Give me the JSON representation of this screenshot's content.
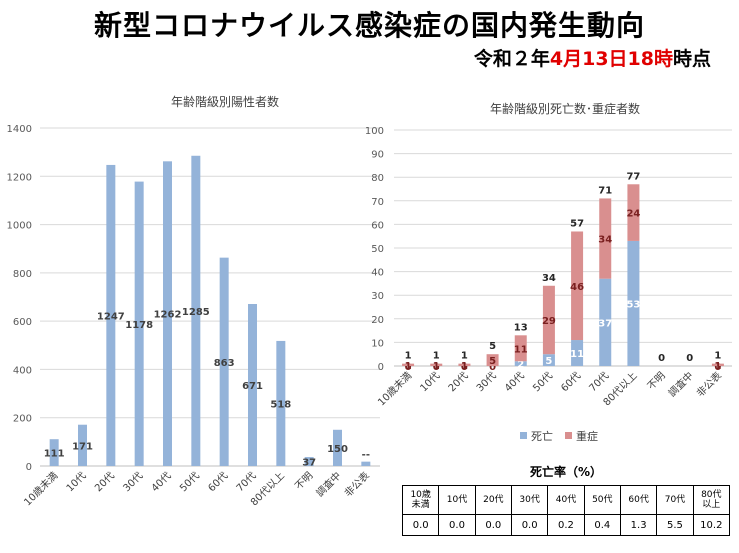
{
  "header": {
    "title": "新型コロナウイルス感染症の国内発生動向",
    "date_prefix": "令和２年",
    "date_red": "4月13日18時",
    "date_suffix": "時点"
  },
  "chart_data": [
    {
      "type": "bar",
      "title": "年齢階級別陽性者数",
      "categories": [
        "10歳未満",
        "10代",
        "20代",
        "30代",
        "40代",
        "50代",
        "60代",
        "70代",
        "80代以上",
        "不明",
        "調査中",
        "非公表"
      ],
      "values": [
        111,
        171,
        1247,
        1178,
        1262,
        1285,
        863,
        671,
        518,
        37,
        150,
        18
      ],
      "data_labels": [
        "111",
        "171",
        "1247",
        "1178",
        "1262",
        "1285",
        "863",
        "671",
        "518",
        "37",
        "150",
        "--"
      ],
      "yticks": [
        0,
        200,
        400,
        600,
        800,
        1000,
        1200,
        1400
      ],
      "ylim": [
        0,
        1400
      ],
      "color": "#94b3d9"
    },
    {
      "type": "bar",
      "stacked": true,
      "title": "年齢階級別死亡数･重症者数",
      "categories": [
        "10歳未満",
        "10代",
        "20代",
        "30代",
        "40代",
        "50代",
        "60代",
        "70代",
        "80代以上",
        "不明",
        "調査中",
        "非公表"
      ],
      "series": [
        {
          "name": "死亡",
          "color": "#94b3d9",
          "values": [
            0,
            0,
            0,
            0,
            2,
            5,
            11,
            37,
            53,
            0,
            0,
            0
          ]
        },
        {
          "name": "重症",
          "color": "#d98f8f",
          "values": [
            1,
            1,
            1,
            5,
            11,
            29,
            46,
            34,
            24,
            0,
            0,
            1
          ]
        }
      ],
      "totals": [
        1,
        1,
        1,
        5,
        13,
        34,
        57,
        71,
        77,
        0,
        0,
        1
      ],
      "yticks": [
        0,
        10,
        20,
        30,
        40,
        50,
        60,
        70,
        80,
        90,
        100
      ],
      "ylim": [
        0,
        100
      ],
      "legend_position": "bottom"
    }
  ],
  "rate_table": {
    "title": "死亡率（%）",
    "headers": [
      "10歳\n未満",
      "10代",
      "20代",
      "30代",
      "40代",
      "50代",
      "60代",
      "70代",
      "80代\n以上"
    ],
    "values": [
      "0.0",
      "0.0",
      "0.0",
      "0.0",
      "0.2",
      "0.4",
      "1.3",
      "5.5",
      "10.2"
    ]
  }
}
